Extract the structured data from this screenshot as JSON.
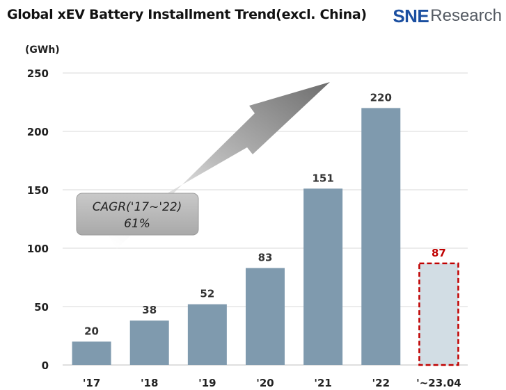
{
  "header": {
    "title": "Global xEV Battery Installment Trend(excl. China)",
    "logo_text_a": "SNE",
    "logo_text_b": "Research"
  },
  "chart_data": {
    "type": "bar",
    "title": "Global xEV Battery Installment Trend(excl. China)",
    "ylabel": "(GWh)",
    "ylim": [
      0,
      250
    ],
    "yticks": [
      0,
      50,
      100,
      150,
      200,
      250
    ],
    "categories": [
      "'17",
      "'18",
      "'19",
      "'20",
      "'21",
      "'22",
      "'~23.04"
    ],
    "values": [
      20,
      38,
      52,
      83,
      151,
      220,
      87
    ],
    "highlight_index": 6,
    "grid": true,
    "annotation": {
      "line1": "CAGR('17~'22)",
      "line2": "61%"
    },
    "colors": {
      "bar": "#7f9aae",
      "highlight_fill": "#d2dde4",
      "highlight_border": "#c00000",
      "highlight_label": "#c00000",
      "grid": "#d9d9d9"
    }
  }
}
